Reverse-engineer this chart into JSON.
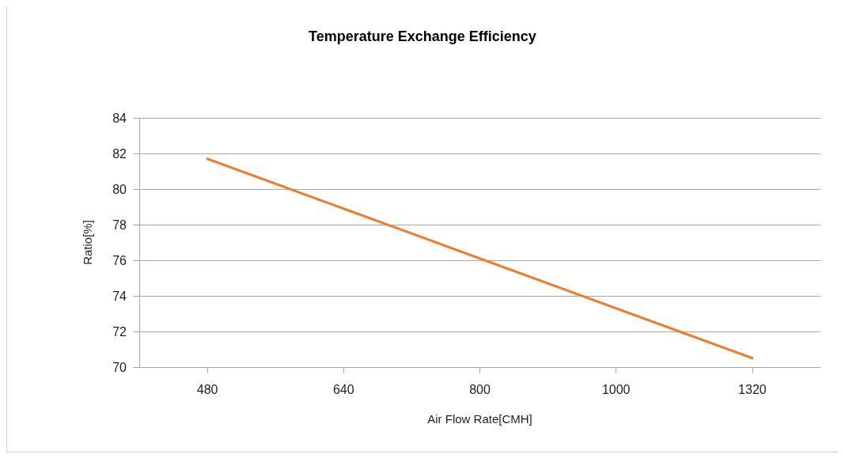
{
  "chart_data": {
    "type": "line",
    "title": "Temperature Exchange Efficiency",
    "xlabel": "Air Flow Rate[CMH]",
    "ylabel": "Ratio[%]",
    "categories": [
      "480",
      "640",
      "800",
      "1000",
      "1320"
    ],
    "series": [
      {
        "color": "#ed7d31",
        "values": [
          81.7,
          78.9,
          76.1,
          73.3,
          70.5
        ]
      }
    ],
    "ylim": [
      70,
      84
    ],
    "yticks": [
      70,
      72,
      74,
      76,
      78,
      80,
      82,
      84
    ],
    "grid": "y",
    "marker": "none",
    "line_style": "solid"
  }
}
